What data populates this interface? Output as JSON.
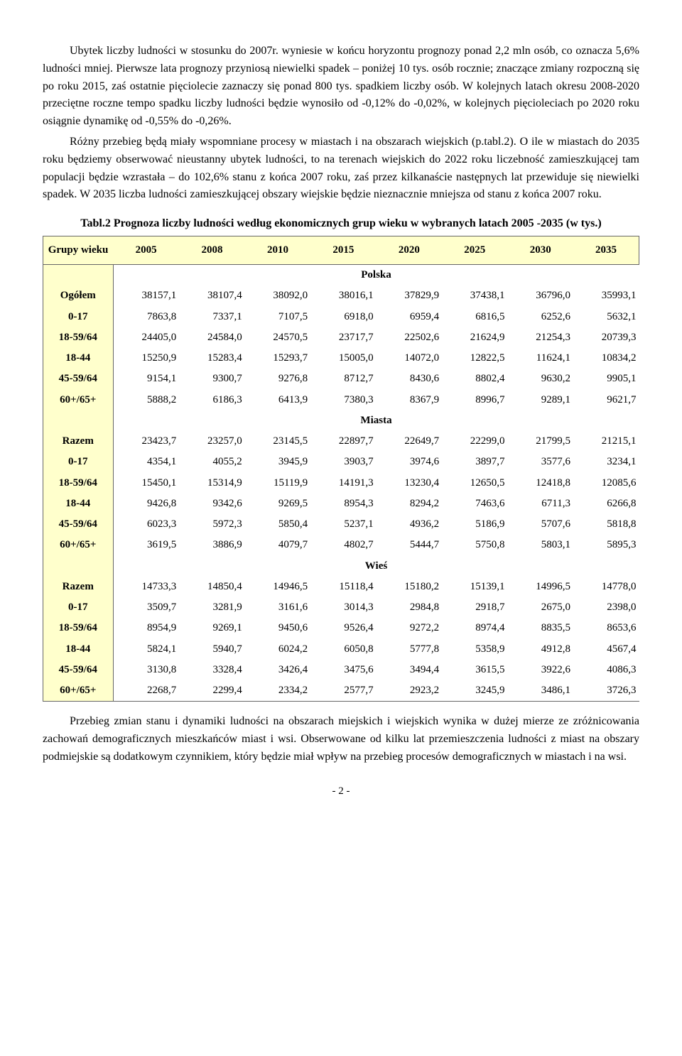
{
  "paragraphs": {
    "p1": "Ubytek liczby ludności w stosunku do 2007r. wyniesie w końcu horyzontu prognozy ponad 2,2 mln osób, co oznacza 5,6% ludności mniej. Pierwsze lata prognozy przyniosą niewielki spadek – poniżej 10 tys. osób rocznie; znaczące zmiany rozpoczną się po roku 2015, zaś ostatnie pięciolecie zaznaczy się ponad 800 tys. spadkiem liczby osób. W kolejnych latach okresu 2008-2020 przeciętne roczne tempo spadku liczby ludności będzie wynosiło od -0,12% do -0,02%, w kolejnych pięcioleciach po 2020 roku osiągnie dynamikę od -0,55% do -0,26%.",
    "p2": "Różny przebieg będą miały wspomniane procesy w miastach i na obszarach wiejskich (p.tabl.2). O ile w miastach do 2035 roku będziemy obserwować nieustanny ubytek ludności, to na terenach wiejskich do 2022 roku liczebność zamieszkującej tam populacji będzie wzrastała – do 102,6% stanu z końca 2007 roku, zaś przez kilkanaście następnych lat przewiduje się niewielki spadek. W 2035 liczba ludności zamieszkującej obszary wiejskie będzie nieznacznie mniejsza od stanu z końca 2007 roku.",
    "p3": "Przebieg zmian stanu i dynamiki ludności na obszarach miejskich i wiejskich wynika w dużej mierze ze zróżnicowania zachowań demograficznych mieszkańców miast i wsi. Obserwowane od kilku lat przemieszczenia ludności z miast na obszary podmiejskie są dodatkowym czynnikiem, który będzie miał wpływ na przebieg procesów demograficznych w miastach i na wsi."
  },
  "table": {
    "title": "Tabl.2 Prognoza liczby ludności według ekonomicznych grup wieku w wybranych latach 2005 -2035 (w tys.)",
    "corner": "Grupy wieku",
    "years": [
      "2005",
      "2008",
      "2010",
      "2015",
      "2020",
      "2025",
      "2030",
      "2035"
    ],
    "sections": [
      {
        "name": "Polska",
        "rows": [
          {
            "label": "Ogółem",
            "v": [
              "38157,1",
              "38107,4",
              "38092,0",
              "38016,1",
              "37829,9",
              "37438,1",
              "36796,0",
              "35993,1"
            ]
          },
          {
            "label": "0-17",
            "v": [
              "7863,8",
              "7337,1",
              "7107,5",
              "6918,0",
              "6959,4",
              "6816,5",
              "6252,6",
              "5632,1"
            ]
          },
          {
            "label": "18-59/64",
            "v": [
              "24405,0",
              "24584,0",
              "24570,5",
              "23717,7",
              "22502,6",
              "21624,9",
              "21254,3",
              "20739,3"
            ]
          },
          {
            "label": "18-44",
            "v": [
              "15250,9",
              "15283,4",
              "15293,7",
              "15005,0",
              "14072,0",
              "12822,5",
              "11624,1",
              "10834,2"
            ]
          },
          {
            "label": "45-59/64",
            "v": [
              "9154,1",
              "9300,7",
              "9276,8",
              "8712,7",
              "8430,6",
              "8802,4",
              "9630,2",
              "9905,1"
            ]
          },
          {
            "label": "60+/65+",
            "v": [
              "5888,2",
              "6186,3",
              "6413,9",
              "7380,3",
              "8367,9",
              "8996,7",
              "9289,1",
              "9621,7"
            ]
          }
        ]
      },
      {
        "name": "Miasta",
        "rows": [
          {
            "label": "Razem",
            "v": [
              "23423,7",
              "23257,0",
              "23145,5",
              "22897,7",
              "22649,7",
              "22299,0",
              "21799,5",
              "21215,1"
            ]
          },
          {
            "label": "0-17",
            "v": [
              "4354,1",
              "4055,2",
              "3945,9",
              "3903,7",
              "3974,6",
              "3897,7",
              "3577,6",
              "3234,1"
            ]
          },
          {
            "label": "18-59/64",
            "v": [
              "15450,1",
              "15314,9",
              "15119,9",
              "14191,3",
              "13230,4",
              "12650,5",
              "12418,8",
              "12085,6"
            ]
          },
          {
            "label": "18-44",
            "v": [
              "9426,8",
              "9342,6",
              "9269,5",
              "8954,3",
              "8294,2",
              "7463,6",
              "6711,3",
              "6266,8"
            ]
          },
          {
            "label": "45-59/64",
            "v": [
              "6023,3",
              "5972,3",
              "5850,4",
              "5237,1",
              "4936,2",
              "5186,9",
              "5707,6",
              "5818,8"
            ]
          },
          {
            "label": "60+/65+",
            "v": [
              "3619,5",
              "3886,9",
              "4079,7",
              "4802,7",
              "5444,7",
              "5750,8",
              "5803,1",
              "5895,3"
            ]
          }
        ]
      },
      {
        "name": "Wieś",
        "rows": [
          {
            "label": "Razem",
            "v": [
              "14733,3",
              "14850,4",
              "14946,5",
              "15118,4",
              "15180,2",
              "15139,1",
              "14996,5",
              "14778,0"
            ]
          },
          {
            "label": "0-17",
            "v": [
              "3509,7",
              "3281,9",
              "3161,6",
              "3014,3",
              "2984,8",
              "2918,7",
              "2675,0",
              "2398,0"
            ]
          },
          {
            "label": "18-59/64",
            "v": [
              "8954,9",
              "9269,1",
              "9450,6",
              "9526,4",
              "9272,2",
              "8974,4",
              "8835,5",
              "8653,6"
            ]
          },
          {
            "label": "18-44",
            "v": [
              "5824,1",
              "5940,7",
              "6024,2",
              "6050,8",
              "5777,8",
              "5358,9",
              "4912,8",
              "4567,4"
            ]
          },
          {
            "label": "45-59/64",
            "v": [
              "3130,8",
              "3328,4",
              "3426,4",
              "3475,6",
              "3494,4",
              "3615,5",
              "3922,6",
              "4086,3"
            ]
          },
          {
            "label": "60+/65+",
            "v": [
              "2268,7",
              "2299,4",
              "2334,2",
              "2577,7",
              "2923,2",
              "3245,9",
              "3486,1",
              "3726,3"
            ]
          }
        ]
      }
    ]
  },
  "page_number": "- 2 -"
}
